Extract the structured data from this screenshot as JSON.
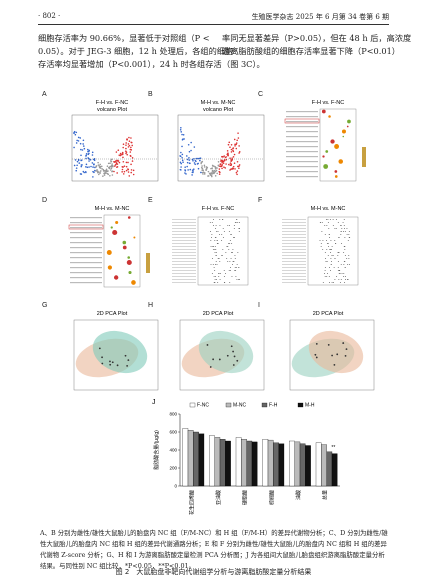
{
  "header": {
    "page": "· 802 ·",
    "journal": "生殖医学杂志 2025 年 6 月第 34 卷第 6 期"
  },
  "body": {
    "left": [
      "细胞存活率为 90.66%，显著低于对照组（P <",
      "0.05）。对于 JEG-3 细胞，12 h 处理后，各组的细胞",
      "存活率均显著增加（P<0.001），24 h 时各组存活"
    ],
    "right": [
      "率同无显著差异（P>0.05），但在 48 h 后，高浓度",
      "游离脂肪酸组的细胞存活率显著下降（P<0.01）",
      "（图 3C）。"
    ]
  },
  "panels": [
    {
      "letter": "A",
      "title": "F-H vs. F-NC",
      "subtitle": "volcano Plot",
      "kind": "volcano"
    },
    {
      "letter": "B",
      "title": "M-H vs. M-NC",
      "subtitle": "volcano Plot",
      "kind": "volcano"
    },
    {
      "letter": "C",
      "title": "F-H vs. F-NC",
      "kind": "enrich"
    },
    {
      "letter": "D",
      "title": "M-H vs. M-NC",
      "kind": "enrich"
    },
    {
      "letter": "E",
      "title": "F-H vs. F-NC",
      "kind": "zscore"
    },
    {
      "letter": "F",
      "title": "M-H vs. M-NC",
      "kind": "zscore"
    },
    {
      "letter": "G",
      "title": "2D PCA Plot",
      "kind": "pca"
    },
    {
      "letter": "H",
      "title": "2D PCA Plot",
      "kind": "pca"
    },
    {
      "letter": "I",
      "title": "2D PCA Plot",
      "kind": "pca"
    }
  ],
  "chart_data": {
    "type": "bar",
    "letter": "J",
    "y_label": "脂肪酸含量/(μg/g)",
    "categories": [
      "花生四烯酸",
      "亚油酸",
      "硬脂酸",
      "棕榈酸",
      "油酸",
      "总量"
    ],
    "series": [
      {
        "name": "F-NC",
        "color": "#ffffff",
        "values": [
          640,
          560,
          540,
          520,
          500,
          480
        ]
      },
      {
        "name": "M-NC",
        "color": "#bbbbbb",
        "values": [
          620,
          540,
          520,
          510,
          490,
          460
        ]
      },
      {
        "name": "F-H",
        "color": "#666666",
        "values": [
          600,
          520,
          500,
          480,
          470,
          380
        ]
      },
      {
        "name": "M-H",
        "color": "#111111",
        "values": [
          580,
          500,
          490,
          470,
          450,
          360
        ]
      }
    ],
    "ylim": [
      0,
      800
    ],
    "yticks": [
      0,
      200,
      400,
      600,
      800
    ],
    "annotation": "**"
  },
  "caption": "A、B 分别为雌性/雄性大鼠胎儿的胎盘内 NC 组（F/M-NC）和 H 组（F/M-H）的差异代谢物分析；C、D 分别为雌性/雄性大鼠胎儿的胎盘内 NC 组和 H 组的差异代谢通路分析；E 和 F 分别为雌性/雄性大鼠胎儿的胎盘内 NC 组和 H 组的差异代谢物 Z-score 分析；G、H 和 I 为游离脂肪酸定量检测 PCA 分析图；J 为各组间大鼠胎儿胎盘组织游离脂肪酸定量分析结果。与同性别 NC 组比较，*P<0.05，**P<0.01。",
  "figure_title": "图 2　大鼠胎盘非靶向代谢组学分析与游离脂肪酸定量分析结果"
}
